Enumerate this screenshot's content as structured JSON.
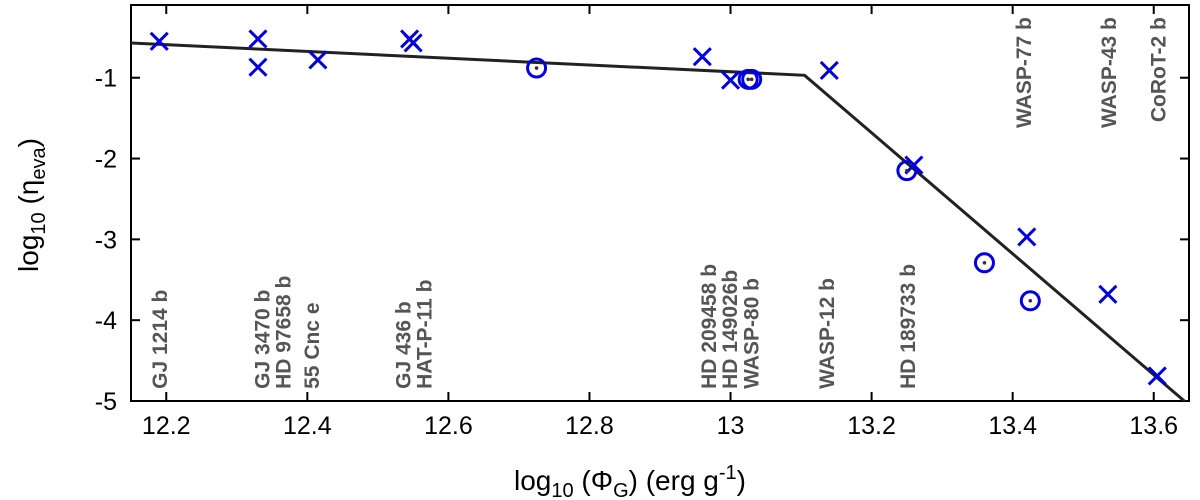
{
  "chart_data": {
    "type": "scatter",
    "xlabel": {
      "base": "log",
      "sub": "10",
      "mid": " (Φ",
      "sub2": "G",
      "mid2": ") (erg g",
      "sup": "-1",
      "end": ")"
    },
    "ylabel": {
      "base": "log",
      "sub": "10",
      "mid": " (η",
      "sub2": "eva",
      "end": ")"
    },
    "xlim": [
      12.15,
      13.65
    ],
    "ylim": [
      -5,
      -0.1
    ],
    "x_ticks": [
      12.2,
      12.4,
      12.6,
      12.8,
      13,
      13.2,
      13.4,
      13.6
    ],
    "x_tick_labels": [
      "12.2",
      "12.4",
      "12.6",
      "12.8",
      "13",
      "13.2",
      "13.4",
      "13.6"
    ],
    "y_ticks": [
      -5,
      -4,
      -3,
      -2,
      -1
    ],
    "y_tick_labels": [
      "-5",
      "-4",
      "-3",
      "-2",
      "-1"
    ],
    "series": [
      {
        "name": "crosses",
        "marker": "x",
        "color": "#0000dd",
        "x": [
          12.19,
          12.33,
          12.33,
          12.415,
          12.545,
          12.55,
          12.96,
          13.0,
          13.14,
          13.26,
          13.42,
          13.535,
          13.605
        ],
        "y": [
          -0.55,
          -0.52,
          -0.87,
          -0.78,
          -0.52,
          -0.57,
          -0.74,
          -1.03,
          -0.91,
          -2.08,
          -2.97,
          -3.68,
          -4.69
        ]
      },
      {
        "name": "circles",
        "marker": "circle-dot",
        "color": "#0000dd",
        "x": [
          12.725,
          13.025,
          13.03,
          13.25,
          13.36,
          13.425
        ],
        "y": [
          -0.88,
          -1.02,
          -1.02,
          -2.15,
          -3.29,
          -3.76
        ]
      }
    ],
    "fit_line": {
      "color": "#222222",
      "x": [
        12.15,
        13.105,
        13.65
      ],
      "y": [
        -0.57,
        -0.97,
        -5.05
      ]
    },
    "planet_labels": [
      {
        "text": "GJ 1214 b",
        "x": 12.19,
        "y": -4.85
      },
      {
        "text": "GJ 3470 b",
        "x": 12.335,
        "y": -4.85
      },
      {
        "text": "HD 97658 b",
        "x": 12.365,
        "y": -4.85
      },
      {
        "text": "55 Cnc e",
        "x": 12.405,
        "y": -4.85
      },
      {
        "text": "GJ 436 b",
        "x": 12.535,
        "y": -4.85
      },
      {
        "text": "HAT-P-11 b",
        "x": 12.565,
        "y": -4.85
      },
      {
        "text": "HD 209458 b",
        "x": 12.968,
        "y": -4.85
      },
      {
        "text": "HD 149026b",
        "x": 12.998,
        "y": -4.85
      },
      {
        "text": "WASP-80 b",
        "x": 13.028,
        "y": -4.85
      },
      {
        "text": "WASP-12 b",
        "x": 13.135,
        "y": -4.85
      },
      {
        "text": "HD 189733 b",
        "x": 13.25,
        "y": -4.85
      },
      {
        "text": "WASP-77 b",
        "x": 13.415,
        "y": -0.25
      },
      {
        "text": "WASP-43 b",
        "x": 13.535,
        "y": -0.25
      },
      {
        "text": "CoRoT-2 b",
        "x": 13.605,
        "y": -0.25
      }
    ]
  }
}
